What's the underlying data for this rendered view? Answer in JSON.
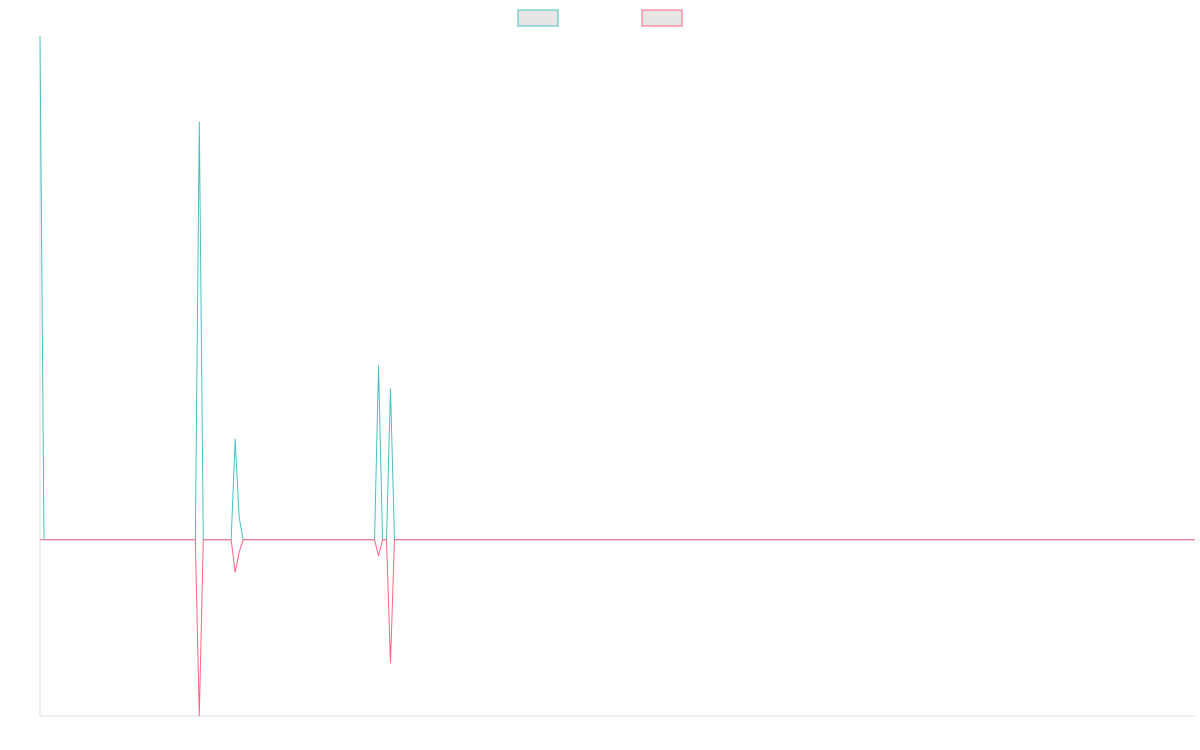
{
  "chart_data": {
    "type": "line",
    "title": "",
    "xlabel": "",
    "ylabel": "",
    "legend_placement": "top-center",
    "grid": false,
    "xlim": [
      0,
      290
    ],
    "ylim": [
      -0.35,
      1.0
    ],
    "series": [
      {
        "color": "#4bc0c0",
        "legend_fill": "#e6e6e6",
        "points": [
          [
            0,
            1.0
          ],
          [
            1,
            0.0
          ],
          [
            38,
            0.0
          ],
          [
            39,
            0.0
          ],
          [
            40,
            0.83
          ],
          [
            41,
            0.0
          ],
          [
            48,
            0.0
          ],
          [
            49,
            0.2
          ],
          [
            50,
            0.045
          ],
          [
            51,
            0.0
          ],
          [
            84,
            0.0
          ],
          [
            85,
            0.345
          ],
          [
            86,
            0.0
          ],
          [
            87,
            0.0
          ],
          [
            88,
            0.3
          ],
          [
            89,
            0.0
          ],
          [
            290,
            0.0
          ]
        ]
      },
      {
        "color": "#ff6384",
        "legend_fill": "#e6e6e6",
        "points": [
          [
            0,
            0.0
          ],
          [
            1,
            0.0
          ],
          [
            38,
            0.0
          ],
          [
            39,
            0.0
          ],
          [
            40,
            -0.35
          ],
          [
            41,
            0.0
          ],
          [
            48,
            0.0
          ],
          [
            49,
            -0.065
          ],
          [
            50,
            -0.025
          ],
          [
            51,
            0.0
          ],
          [
            84,
            0.0
          ],
          [
            85,
            -0.032
          ],
          [
            86,
            0.0
          ],
          [
            87,
            0.0
          ],
          [
            88,
            -0.245
          ],
          [
            89,
            0.0
          ],
          [
            290,
            0.0
          ]
        ]
      }
    ]
  }
}
